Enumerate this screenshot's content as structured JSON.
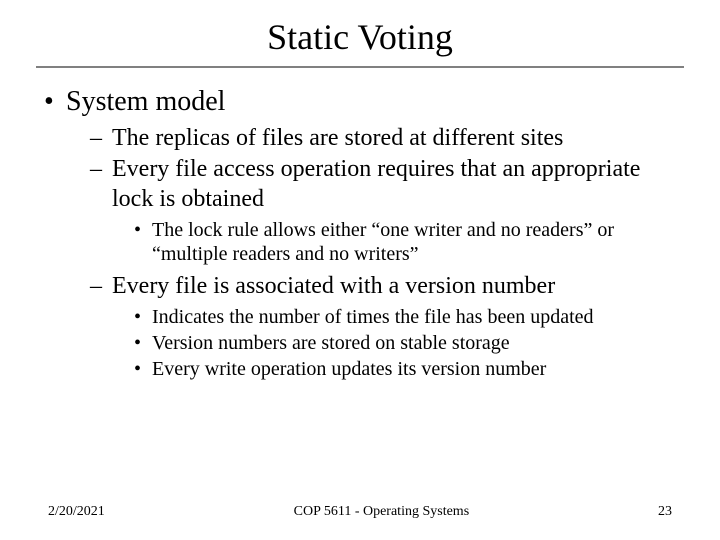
{
  "colors": {
    "text": "#000000",
    "background": "#ffffff",
    "rule": "#808080"
  },
  "typography": {
    "family": "Times New Roman",
    "title_fontsize": 36,
    "l1_fontsize": 28,
    "l2_fontsize": 24,
    "l3_fontsize": 20,
    "footer_fontsize": 14
  },
  "title": "Static Voting",
  "content": {
    "l1": "System model",
    "l2_a": "The replicas of files are stored at different sites",
    "l2_b": "Every file access operation requires that an appropriate lock is obtained",
    "l3_b1": "The lock rule allows either “one writer and no readers” or “multiple readers and no writers”",
    "l2_c": "Every file is associated with a version number",
    "l3_c1": "Indicates the number of times the file has been updated",
    "l3_c2": "Version numbers are stored on stable storage",
    "l3_c3": "Every write operation updates its version number"
  },
  "footer": {
    "date": "2/20/2021",
    "course": "COP 5611 - Operating Systems",
    "page": "23"
  }
}
